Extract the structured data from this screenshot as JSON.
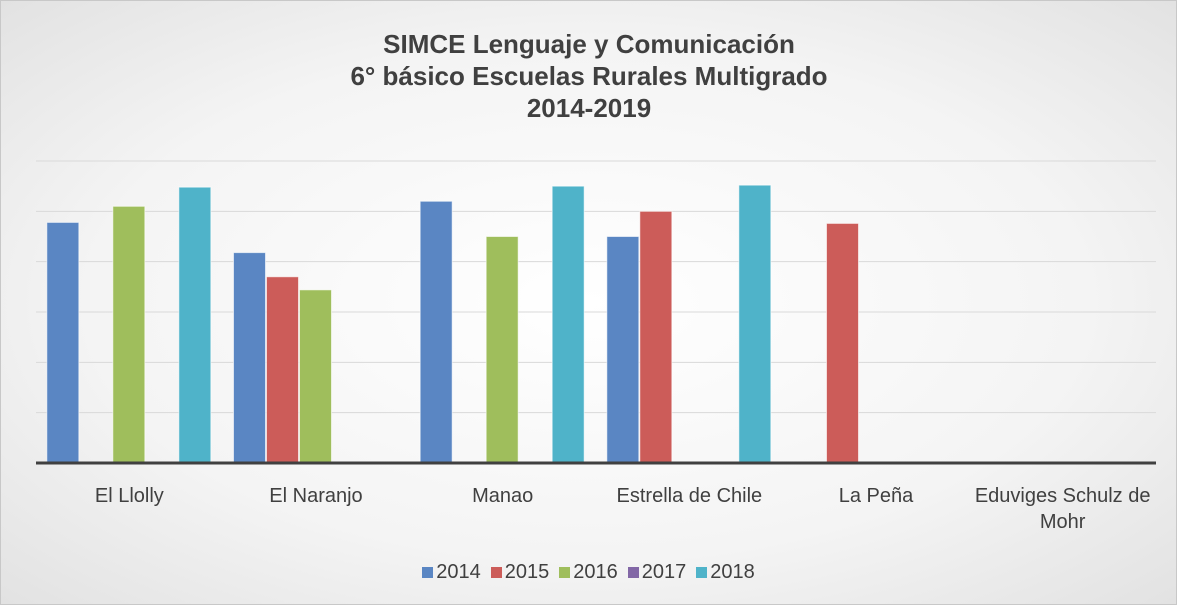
{
  "chart_data": {
    "type": "bar",
    "title": [
      "SIMCE Lenguaje y Comunicación",
      "6° básico Escuelas Rurales Multigrado",
      "2014-2019"
    ],
    "categories": [
      "El Llolly",
      "El Naranjo",
      "Manao",
      "Estrella de Chile",
      "La Peña",
      "Eduviges Schulz de Mohr"
    ],
    "series": [
      {
        "name": "2014",
        "color": "#5a86c3",
        "values": [
          239,
          209,
          260,
          225,
          null,
          null
        ]
      },
      {
        "name": "2015",
        "color": "#cc5c59",
        "values": [
          null,
          185,
          null,
          250,
          238,
          null
        ]
      },
      {
        "name": "2016",
        "color": "#9fbe5c",
        "values": [
          255,
          172,
          225,
          null,
          null,
          null
        ]
      },
      {
        "name": "2017",
        "color": "#8267a6",
        "values": [
          null,
          null,
          null,
          null,
          null,
          null
        ]
      },
      {
        "name": "2018",
        "color": "#4fb3c9",
        "values": [
          274,
          null,
          275,
          276,
          null,
          null
        ]
      }
    ],
    "ylim": [
      0,
      300
    ],
    "yticks": [
      0,
      50,
      100,
      150,
      200,
      250,
      300
    ],
    "grid": true
  }
}
